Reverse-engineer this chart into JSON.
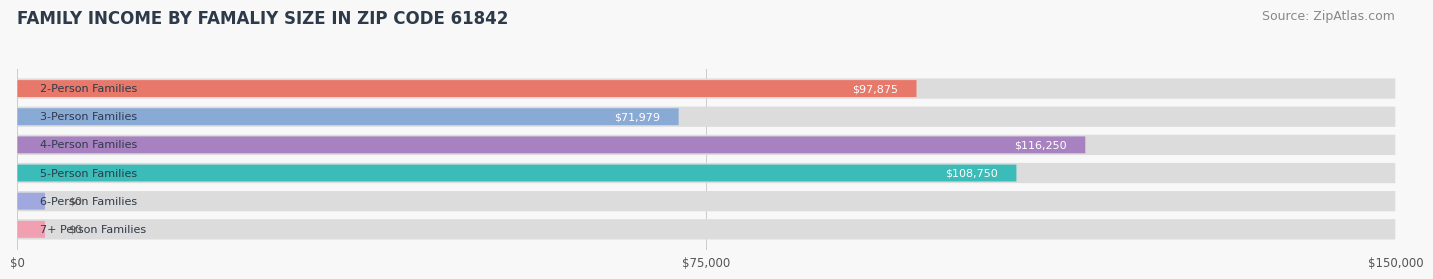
{
  "title": "FAMILY INCOME BY FAMALIY SIZE IN ZIP CODE 61842",
  "source": "Source: ZipAtlas.com",
  "categories": [
    "2-Person Families",
    "3-Person Families",
    "4-Person Families",
    "5-Person Families",
    "6-Person Families",
    "7+ Person Families"
  ],
  "values": [
    97875,
    71979,
    116250,
    108750,
    0,
    0
  ],
  "bar_colors": [
    "#E8786A",
    "#8AAAD6",
    "#A882C0",
    "#3BBCB8",
    "#A0A8E0",
    "#F0A0B0"
  ],
  "xlim": [
    0,
    150000
  ],
  "xticks": [
    0,
    75000,
    150000
  ],
  "xtick_labels": [
    "$0",
    "$75,000",
    "$150,000"
  ],
  "value_labels": [
    "$97,875",
    "$71,979",
    "$116,250",
    "$108,750",
    "$0",
    "$0"
  ],
  "title_color": "#2d3a4a",
  "title_fontsize": 12,
  "source_fontsize": 9,
  "bar_bg_color": "#dcdcdc",
  "fig_bg_color": "#f8f8f8"
}
